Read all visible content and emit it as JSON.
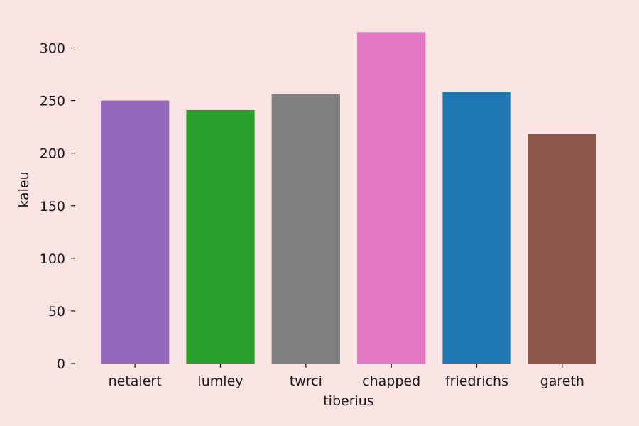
{
  "chart_data": {
    "type": "bar",
    "title": "",
    "xlabel": "tiberius",
    "ylabel": "kaleu",
    "categories": [
      "netalert",
      "lumley",
      "twrci",
      "chapped",
      "friedrichs",
      "gareth"
    ],
    "values": [
      250,
      241,
      256,
      315,
      258,
      218
    ],
    "colors": [
      "#9467bd",
      "#2ca02c",
      "#7f7f7f",
      "#e377c2",
      "#1f77b4",
      "#8c564b"
    ],
    "ylim": [
      0,
      330
    ],
    "yticks": [
      0,
      50,
      100,
      150,
      200,
      250,
      300
    ],
    "ytick_labels": [
      "0",
      "50",
      "100",
      "150",
      "200",
      "250",
      "300"
    ],
    "grid": false,
    "legend": "none",
    "background_color": "#fae3e3"
  }
}
